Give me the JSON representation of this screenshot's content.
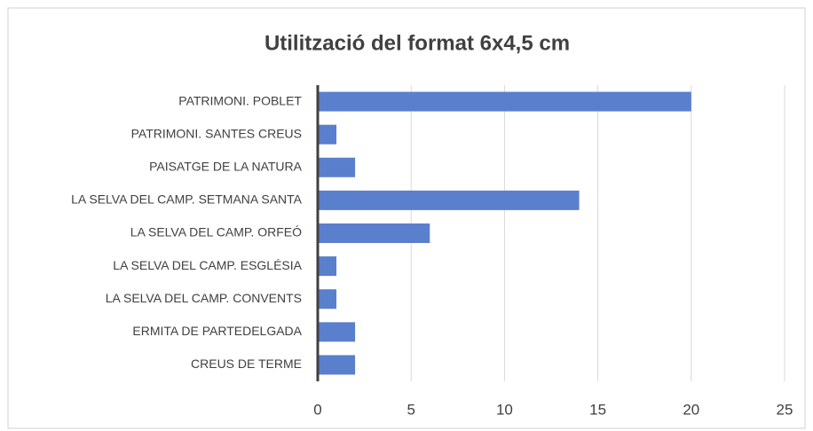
{
  "chart_data": {
    "type": "barh",
    "title": "Utilització del format 6x4,5 cm",
    "categories": [
      "PATRIMONI. POBLET",
      "PATRIMONI. SANTES CREUS",
      "PAISATGE DE LA NATURA",
      "LA SELVA DEL CAMP. SETMANA SANTA",
      "LA SELVA DEL CAMP. ORFEÓ",
      "LA SELVA DEL CAMP. ESGLÉSIA",
      "LA SELVA DEL CAMP. CONVENTS",
      "ERMITA DE PARTEDELGADA",
      "CREUS DE TERME"
    ],
    "values": [
      20,
      1,
      2,
      14,
      6,
      1,
      1,
      2,
      2
    ],
    "color": "#5a7fcd",
    "xlim": [
      0,
      25
    ],
    "xticks": [
      0,
      5,
      10,
      15,
      20,
      25
    ],
    "grid": true
  }
}
